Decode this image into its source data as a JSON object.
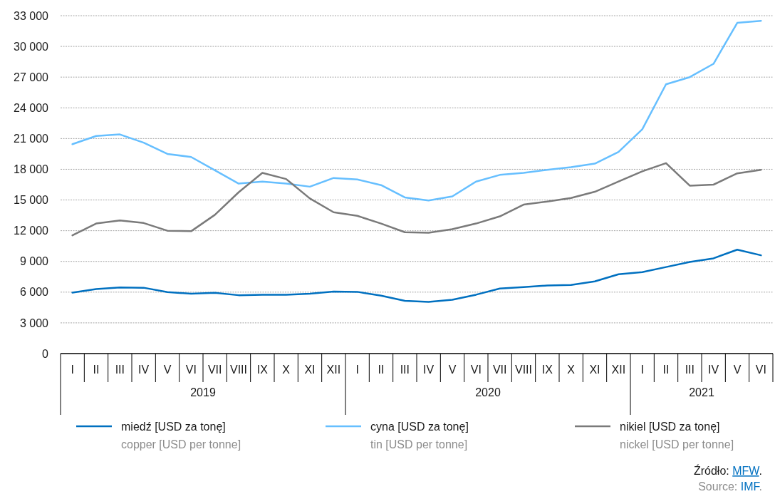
{
  "chart_data": {
    "type": "line",
    "categories": [
      "I",
      "II",
      "III",
      "IV",
      "V",
      "VI",
      "VII",
      "VIII",
      "IX",
      "X",
      "XI",
      "XII",
      "I",
      "II",
      "III",
      "IV",
      "V",
      "VI",
      "VII",
      "VIII",
      "IX",
      "X",
      "XI",
      "XII",
      "I",
      "II",
      "III",
      "IV",
      "V",
      "VI"
    ],
    "ylim": [
      0,
      33000
    ],
    "yticks": [
      {
        "value": 0,
        "label": "0"
      },
      {
        "value": 3000,
        "label": "3 000"
      },
      {
        "value": 6000,
        "label": "6 000"
      },
      {
        "value": 9000,
        "label": "9 000"
      },
      {
        "value": 12000,
        "label": "12 000"
      },
      {
        "value": 15000,
        "label": "15 000"
      },
      {
        "value": 18000,
        "label": "18 000"
      },
      {
        "value": 21000,
        "label": "21 000"
      },
      {
        "value": 24000,
        "label": "24 000"
      },
      {
        "value": 27000,
        "label": "27 000"
      },
      {
        "value": 30000,
        "label": "30 000"
      },
      {
        "value": 33000,
        "label": "33 000"
      }
    ],
    "grid": "y",
    "legend": "bottom",
    "series": [
      {
        "name": "miedź [USD za tonę]\ncopper [USD per tonne]",
        "color": "#0070c0",
        "values": [
          5950,
          6300,
          6450,
          6430,
          6000,
          5850,
          5930,
          5700,
          5750,
          5750,
          5850,
          6050,
          6030,
          5650,
          5150,
          5050,
          5250,
          5750,
          6350,
          6500,
          6650,
          6700,
          7050,
          7750,
          7950,
          8450,
          8950,
          9300,
          10150,
          9600
        ]
      },
      {
        "name": "cyna [USD za tonę]\ntin [USD per tonne]",
        "color": "#66bfff",
        "values": [
          20450,
          21250,
          21400,
          20600,
          19500,
          19200,
          17900,
          16600,
          16800,
          16600,
          16300,
          17150,
          17000,
          16450,
          15250,
          14950,
          15350,
          16800,
          17450,
          17650,
          17950,
          18200,
          18550,
          19700,
          21900,
          26300,
          27000,
          28300,
          32300,
          32500
        ]
      },
      {
        "name": "nikiel [USD za tonę]\nnickel [USD per tonne]",
        "color": "#7a7a7a",
        "values": [
          11550,
          12700,
          13000,
          12750,
          12000,
          11950,
          13550,
          15750,
          17650,
          17050,
          15150,
          13800,
          13450,
          12700,
          11850,
          11800,
          12150,
          12700,
          13400,
          14550,
          14850,
          15200,
          15800,
          16800,
          17800,
          18600,
          16400,
          16500,
          17600,
          17950
        ]
      }
    ],
    "annotations": [
      "2019",
      "2020",
      "2021",
      "Źródło: MFW.",
      "Source: IMF."
    ]
  }
}
